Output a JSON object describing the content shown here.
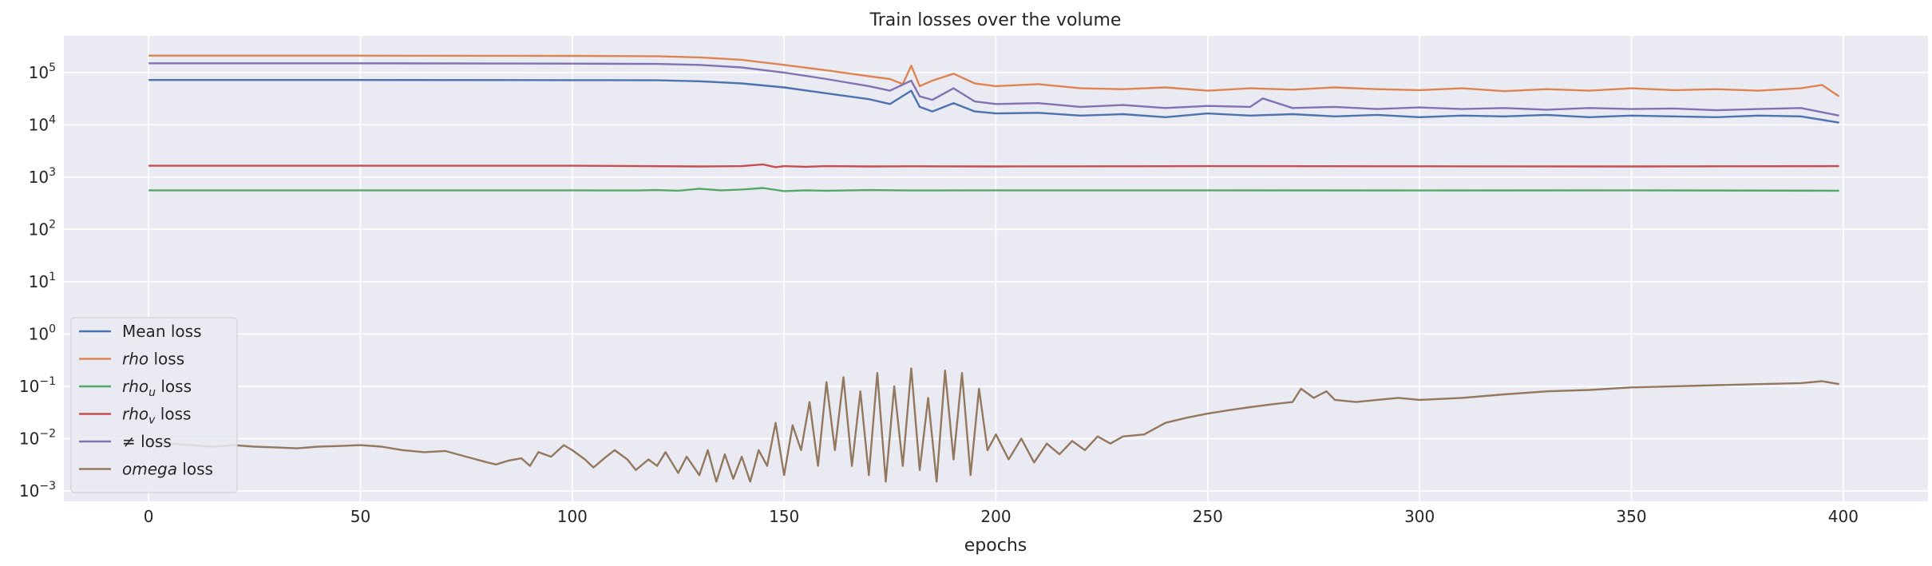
{
  "chart_data": {
    "type": "line",
    "title": "Train losses over the volume",
    "xlabel": "epochs",
    "ylabel": "",
    "y_scale": "log",
    "xlim": [
      -20,
      420
    ],
    "ylim_exponent": [
      -3.2,
      5.7
    ],
    "grid": true,
    "legend_position": "lower-left",
    "x_ticks": [
      0,
      50,
      100,
      150,
      200,
      250,
      300,
      350,
      400
    ],
    "y_tick_exponents": [
      -3,
      -2,
      -1,
      0,
      1,
      2,
      3,
      4,
      5
    ],
    "series": [
      {
        "name": "Mean loss",
        "color": "#4c72b0",
        "x": [
          0,
          50,
          100,
          120,
          130,
          140,
          150,
          160,
          170,
          175,
          180,
          182,
          185,
          190,
          195,
          200,
          210,
          220,
          230,
          240,
          250,
          260,
          270,
          280,
          290,
          300,
          310,
          320,
          330,
          340,
          350,
          360,
          370,
          380,
          390,
          399
        ],
        "values": [
          72000,
          72000,
          71500,
          71000,
          68000,
          62000,
          52000,
          40000,
          31000,
          25000,
          45000,
          22000,
          18000,
          26000,
          18000,
          16500,
          17000,
          15000,
          16000,
          14000,
          16500,
          15000,
          16000,
          14500,
          15500,
          14000,
          15000,
          14500,
          15500,
          14000,
          15000,
          14500,
          14000,
          15000,
          14500,
          11000
        ]
      },
      {
        "name": "rho loss",
        "label_italic": "rho",
        "label_rest": " loss",
        "color": "#dd8452",
        "x": [
          0,
          50,
          100,
          120,
          130,
          140,
          150,
          160,
          170,
          175,
          178,
          180,
          182,
          185,
          190,
          195,
          200,
          210,
          220,
          230,
          240,
          250,
          260,
          270,
          280,
          290,
          300,
          310,
          320,
          330,
          340,
          350,
          360,
          370,
          380,
          390,
          395,
          399
        ],
        "values": [
          210000,
          210000,
          208000,
          205000,
          195000,
          175000,
          140000,
          110000,
          85000,
          75000,
          60000,
          135000,
          55000,
          70000,
          95000,
          62000,
          55000,
          60000,
          50000,
          48000,
          52000,
          45000,
          50000,
          47000,
          52000,
          48000,
          46000,
          50000,
          44000,
          48000,
          45000,
          50000,
          46000,
          48000,
          45000,
          50000,
          58000,
          35000
        ]
      },
      {
        "name": "rho_u loss",
        "label_italic": "rho",
        "label_sub": "u",
        "label_rest": " loss",
        "color": "#55a868",
        "x": [
          0,
          50,
          100,
          115,
          120,
          125,
          130,
          135,
          140,
          145,
          150,
          155,
          160,
          170,
          180,
          200,
          250,
          300,
          350,
          399
        ],
        "values": [
          560,
          560,
          560,
          555,
          565,
          550,
          600,
          560,
          580,
          620,
          540,
          560,
          550,
          565,
          555,
          560,
          560,
          555,
          560,
          550
        ]
      },
      {
        "name": "rho_v loss",
        "label_italic": "rho",
        "label_sub": "v",
        "label_rest": " loss",
        "color": "#c44e52",
        "x": [
          0,
          50,
          100,
          130,
          140,
          145,
          148,
          150,
          155,
          160,
          170,
          180,
          200,
          250,
          300,
          350,
          399
        ],
        "values": [
          1650,
          1650,
          1650,
          1600,
          1620,
          1750,
          1550,
          1620,
          1580,
          1620,
          1600,
          1610,
          1600,
          1620,
          1610,
          1600,
          1620
        ]
      },
      {
        "name": "≠ loss",
        "label_italic": "≠",
        "label_rest": " loss",
        "color": "#8172b3",
        "x": [
          0,
          50,
          100,
          120,
          130,
          140,
          150,
          160,
          170,
          175,
          180,
          182,
          185,
          190,
          195,
          200,
          210,
          220,
          230,
          240,
          250,
          260,
          263,
          270,
          280,
          290,
          300,
          310,
          320,
          330,
          340,
          350,
          360,
          370,
          380,
          390,
          399
        ],
        "values": [
          150000,
          150000,
          148000,
          146000,
          140000,
          125000,
          100000,
          75000,
          55000,
          45000,
          70000,
          35000,
          30000,
          50000,
          28000,
          25000,
          26000,
          22000,
          24000,
          21000,
          23000,
          22000,
          32000,
          21000,
          22000,
          20000,
          21500,
          20000,
          21000,
          19500,
          21000,
          20000,
          20500,
          19000,
          20000,
          21000,
          15000
        ]
      },
      {
        "name": "omega loss",
        "label_italic": "omega",
        "label_rest": " loss",
        "color": "#937860",
        "x": [
          0,
          5,
          10,
          15,
          20,
          25,
          30,
          35,
          40,
          45,
          50,
          55,
          60,
          65,
          70,
          75,
          80,
          82,
          85,
          88,
          90,
          92,
          95,
          98,
          100,
          103,
          105,
          108,
          110,
          113,
          115,
          118,
          120,
          122,
          125,
          127,
          130,
          132,
          134,
          136,
          138,
          140,
          142,
          144,
          146,
          148,
          150,
          152,
          154,
          156,
          158,
          160,
          162,
          164,
          166,
          168,
          170,
          172,
          174,
          176,
          178,
          180,
          182,
          184,
          186,
          188,
          190,
          192,
          194,
          196,
          198,
          200,
          203,
          206,
          209,
          212,
          215,
          218,
          221,
          224,
          227,
          230,
          235,
          240,
          245,
          250,
          255,
          260,
          265,
          270,
          272,
          275,
          278,
          280,
          285,
          290,
          295,
          300,
          310,
          320,
          330,
          340,
          350,
          360,
          370,
          380,
          390,
          395,
          399
        ],
        "values": [
          0.0085,
          0.008,
          0.0075,
          0.007,
          0.0075,
          0.007,
          0.0068,
          0.0065,
          0.007,
          0.0072,
          0.0075,
          0.007,
          0.006,
          0.0055,
          0.0058,
          0.0045,
          0.0035,
          0.0032,
          0.0038,
          0.0042,
          0.003,
          0.0055,
          0.0045,
          0.0075,
          0.006,
          0.004,
          0.0028,
          0.0045,
          0.006,
          0.004,
          0.0025,
          0.004,
          0.003,
          0.0055,
          0.0022,
          0.0045,
          0.002,
          0.006,
          0.0015,
          0.005,
          0.0017,
          0.0045,
          0.0015,
          0.006,
          0.003,
          0.02,
          0.002,
          0.018,
          0.006,
          0.05,
          0.003,
          0.12,
          0.006,
          0.15,
          0.003,
          0.08,
          0.002,
          0.18,
          0.0015,
          0.1,
          0.003,
          0.22,
          0.0025,
          0.06,
          0.0015,
          0.2,
          0.004,
          0.18,
          0.002,
          0.09,
          0.006,
          0.012,
          0.004,
          0.01,
          0.0035,
          0.008,
          0.005,
          0.009,
          0.006,
          0.011,
          0.008,
          0.011,
          0.012,
          0.02,
          0.025,
          0.03,
          0.035,
          0.04,
          0.045,
          0.05,
          0.09,
          0.06,
          0.08,
          0.055,
          0.05,
          0.055,
          0.06,
          0.055,
          0.06,
          0.07,
          0.08,
          0.085,
          0.095,
          0.1,
          0.105,
          0.11,
          0.115,
          0.125,
          0.11
        ]
      }
    ]
  }
}
